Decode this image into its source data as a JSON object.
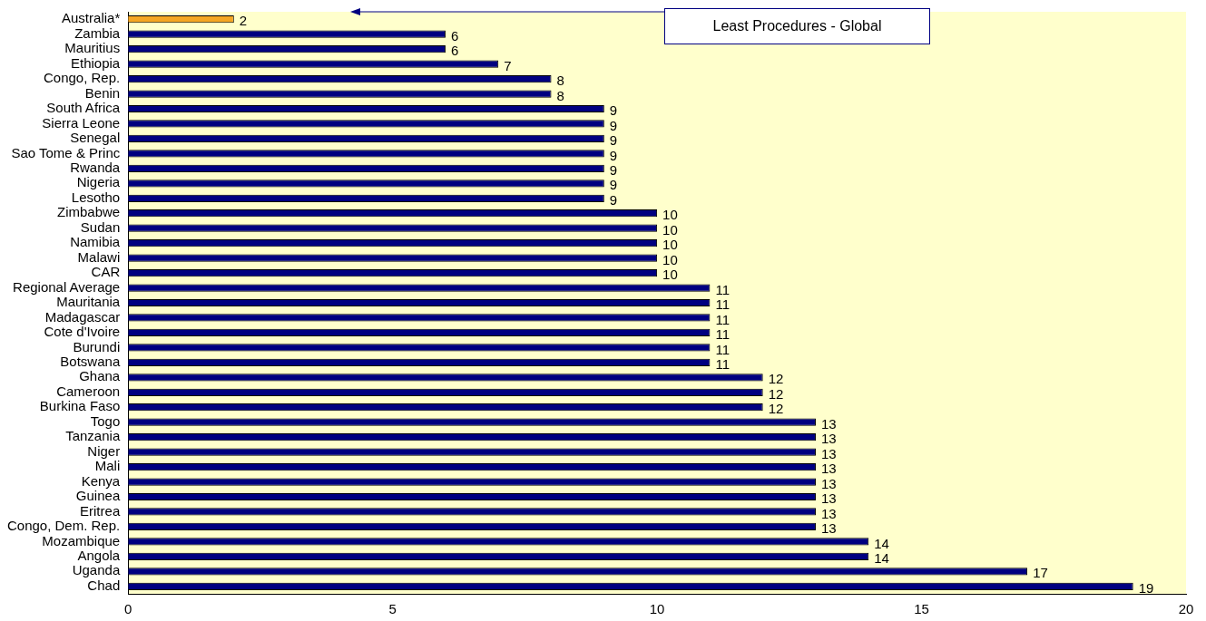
{
  "chart_data": {
    "type": "bar",
    "orientation": "horizontal",
    "categories": [
      "Australia*",
      "Zambia",
      "Mauritius",
      "Ethiopia",
      "Congo, Rep.",
      "Benin",
      "South Africa",
      "Sierra Leone",
      "Senegal",
      "Sao Tome & Princ",
      "Rwanda",
      "Nigeria",
      "Lesotho",
      "Zimbabwe",
      "Sudan",
      "Namibia",
      "Malawi",
      "CAR",
      "Regional Average",
      "Mauritania",
      "Madagascar",
      "Cote d'Ivoire",
      "Burundi",
      "Botswana",
      "Ghana",
      "Cameroon",
      "Burkina Faso",
      "Togo",
      "Tanzania",
      "Niger",
      "Mali",
      "Kenya",
      "Guinea",
      "Eritrea",
      "Congo, Dem. Rep.",
      "Mozambique",
      "Angola",
      "Uganda",
      "Chad"
    ],
    "values": [
      2,
      6,
      6,
      7,
      8,
      8,
      9,
      9,
      9,
      9,
      9,
      9,
      9,
      10,
      10,
      10,
      10,
      10,
      11,
      11,
      11,
      11,
      11,
      11,
      12,
      12,
      12,
      13,
      13,
      13,
      13,
      13,
      13,
      13,
      13,
      14,
      14,
      17,
      19
    ],
    "colors": [
      "#f5a623",
      "#000080",
      "#000080",
      "#000080",
      "#000080",
      "#000080",
      "#000080",
      "#000080",
      "#000080",
      "#000080",
      "#000080",
      "#000080",
      "#000080",
      "#000080",
      "#000080",
      "#000080",
      "#000080",
      "#000080",
      "#000080",
      "#000080",
      "#000080",
      "#000080",
      "#000080",
      "#000080",
      "#000080",
      "#000080",
      "#000080",
      "#000080",
      "#000080",
      "#000080",
      "#000080",
      "#000080",
      "#000080",
      "#000080",
      "#000080",
      "#000080",
      "#000080",
      "#000080",
      "#000080"
    ],
    "xlim": [
      0,
      20
    ],
    "xticks": [
      0,
      5,
      10,
      15,
      20
    ],
    "data_labels": true,
    "grid": false,
    "legend": false,
    "annotations": [
      "Least Procedures - Global"
    ]
  }
}
